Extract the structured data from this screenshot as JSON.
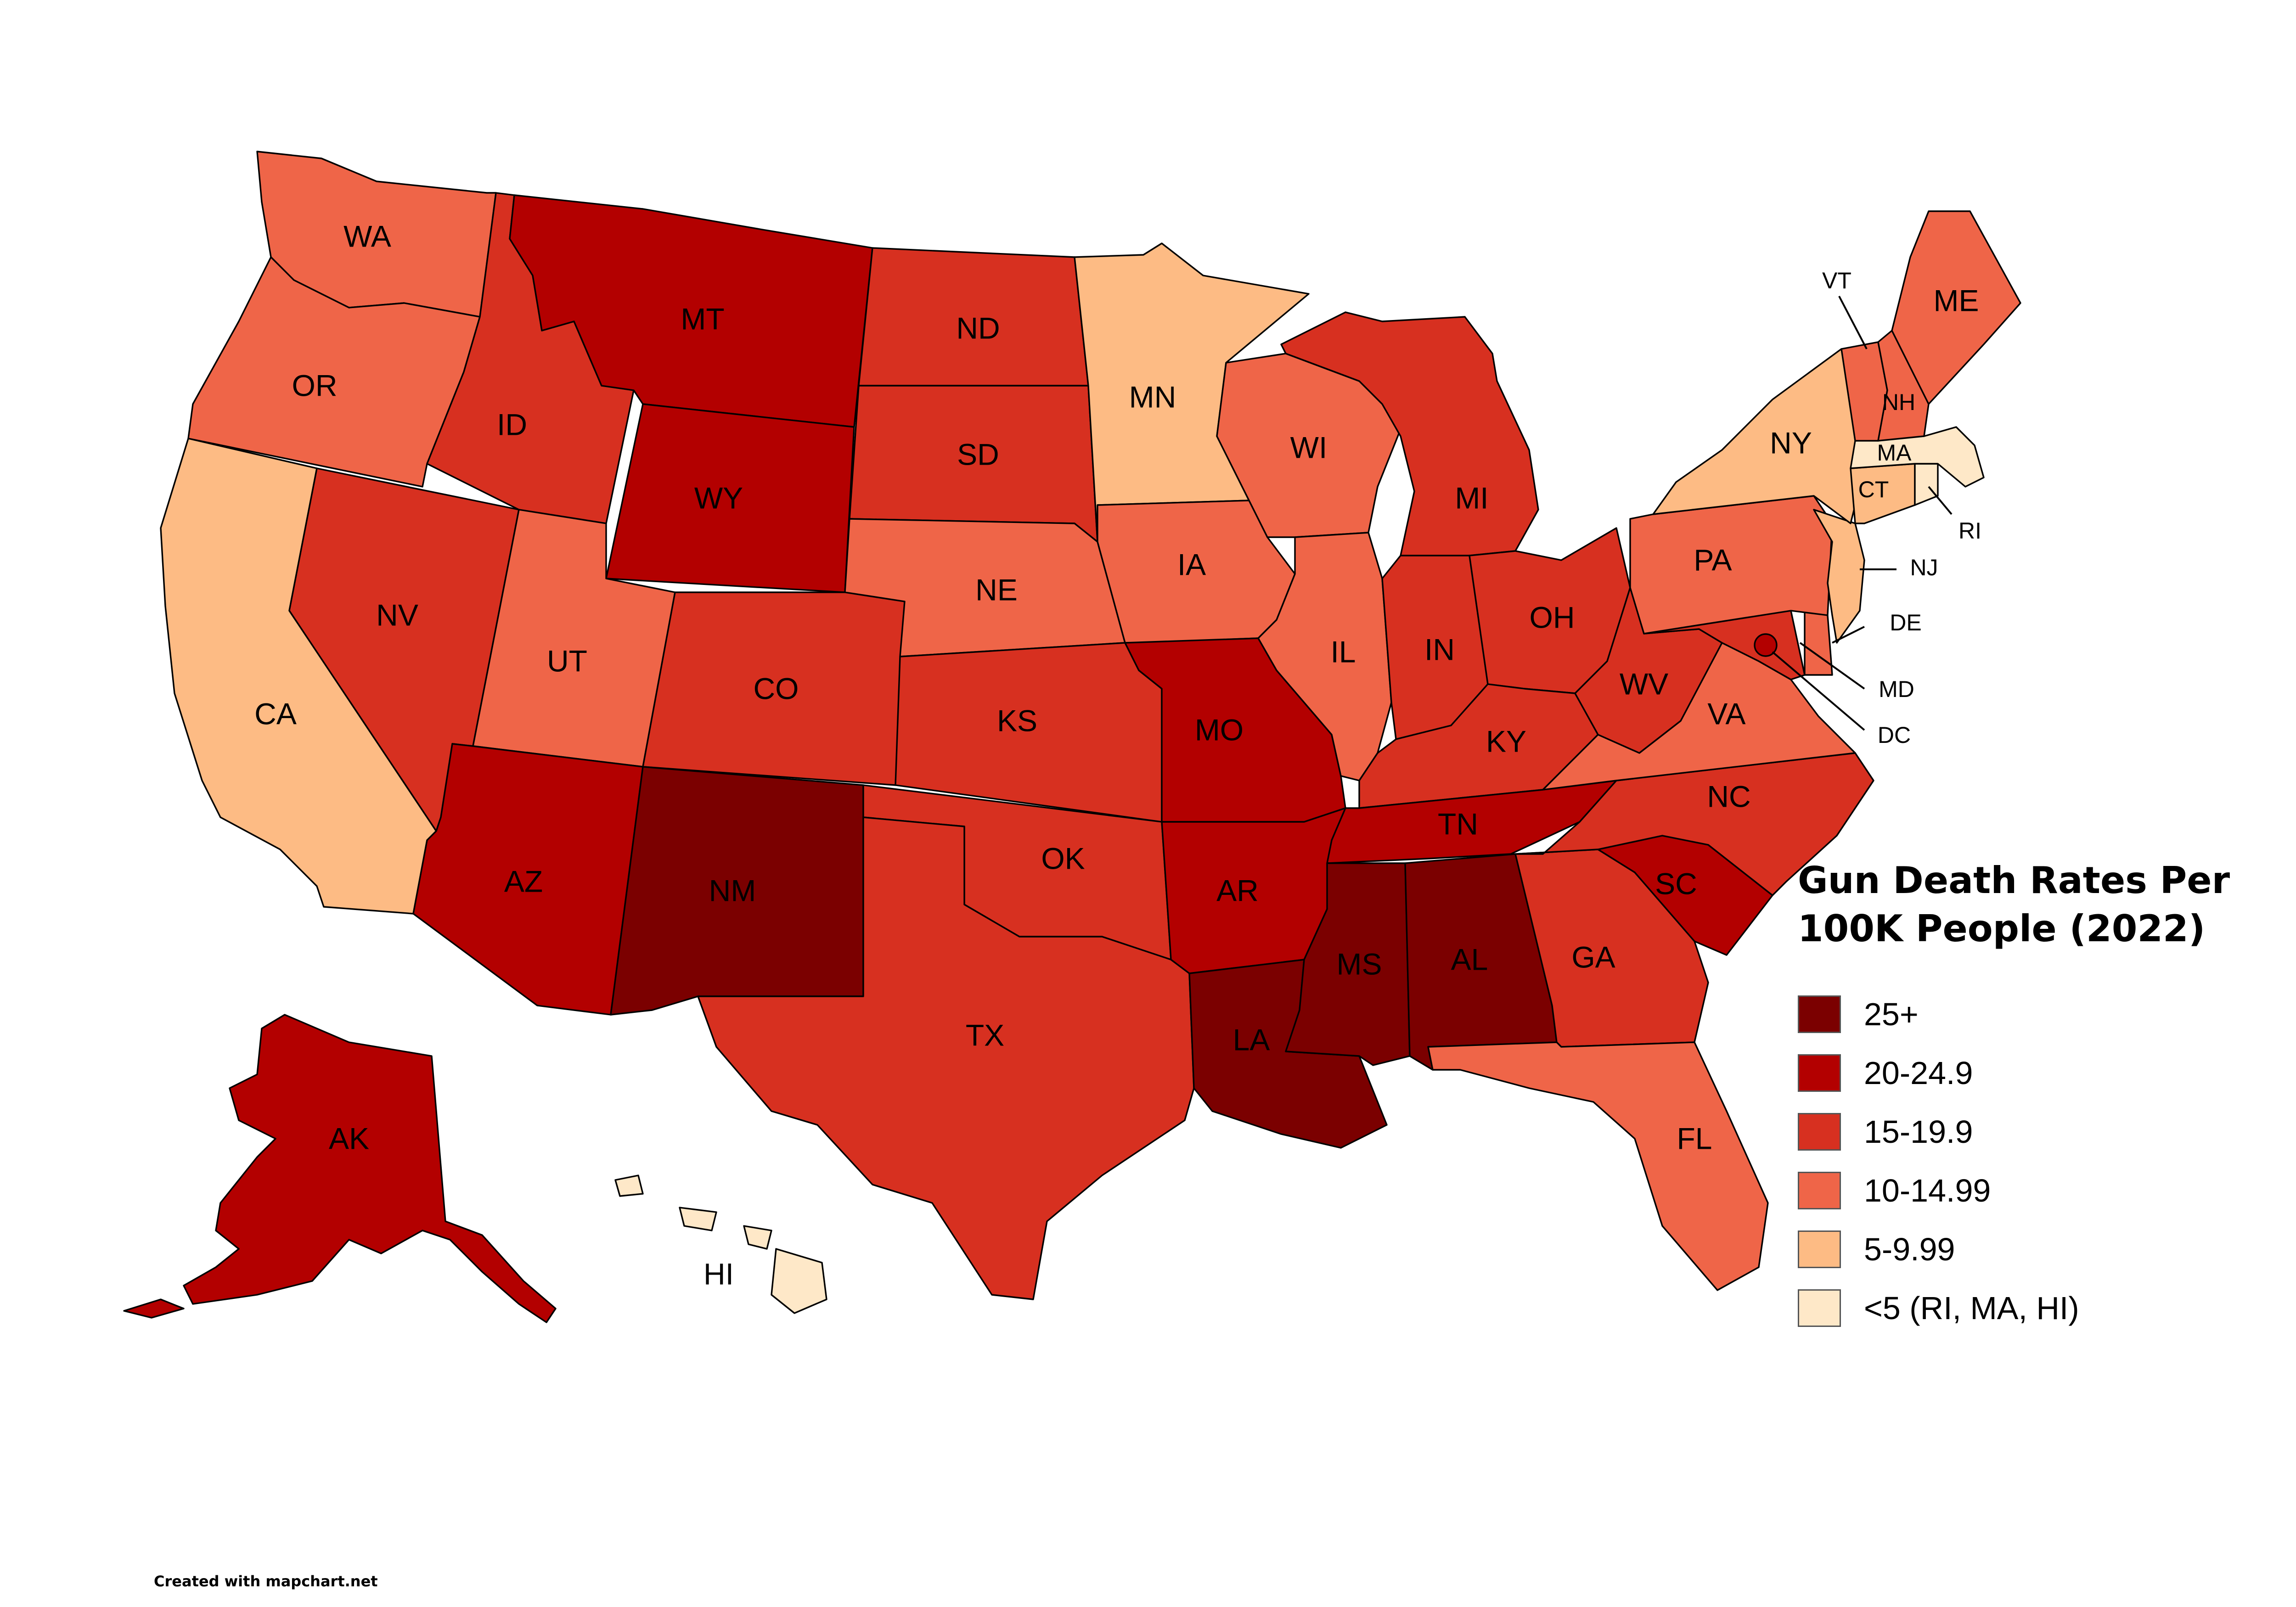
{
  "title": "Gun Death Rates Per 100K People (2022)",
  "credit": "Created with mapchart.net",
  "legend": [
    {
      "label": "25+",
      "color": "#7b0000"
    },
    {
      "label": "20-24.9",
      "color": "#b30000"
    },
    {
      "label": "15-19.9",
      "color": "#d73020"
    },
    {
      "label": "10-14.99",
      "color": "#ef6548"
    },
    {
      "label": "5-9.99",
      "color": "#fdbb84"
    },
    {
      "label": "<5 (RI, MA, HI)",
      "color": "#fee8c8"
    }
  ],
  "states": {
    "WA": {
      "label": "WA",
      "bin": 3
    },
    "OR": {
      "label": "OR",
      "bin": 3
    },
    "CA": {
      "label": "CA",
      "bin": 4
    },
    "NV": {
      "label": "NV",
      "bin": 2
    },
    "ID": {
      "label": "ID",
      "bin": 2
    },
    "MT": {
      "label": "MT",
      "bin": 1
    },
    "WY": {
      "label": "WY",
      "bin": 1
    },
    "UT": {
      "label": "UT",
      "bin": 3
    },
    "AZ": {
      "label": "AZ",
      "bin": 1
    },
    "NM": {
      "label": "NM",
      "bin": 0
    },
    "CO": {
      "label": "CO",
      "bin": 2
    },
    "ND": {
      "label": "ND",
      "bin": 2
    },
    "SD": {
      "label": "SD",
      "bin": 2
    },
    "NE": {
      "label": "NE",
      "bin": 3
    },
    "KS": {
      "label": "KS",
      "bin": 2
    },
    "OK": {
      "label": "OK",
      "bin": 2
    },
    "TX": {
      "label": "TX",
      "bin": 2
    },
    "MN": {
      "label": "MN",
      "bin": 4
    },
    "IA": {
      "label": "IA",
      "bin": 3
    },
    "MO": {
      "label": "MO",
      "bin": 1
    },
    "AR": {
      "label": "AR",
      "bin": 1
    },
    "LA": {
      "label": "LA",
      "bin": 0
    },
    "WI": {
      "label": "WI",
      "bin": 3
    },
    "IL": {
      "label": "IL",
      "bin": 3
    },
    "MI": {
      "label": "MI",
      "bin": 2
    },
    "IN": {
      "label": "IN",
      "bin": 2
    },
    "OH": {
      "label": "OH",
      "bin": 2
    },
    "KY": {
      "label": "KY",
      "bin": 2
    },
    "TN": {
      "label": "TN",
      "bin": 1
    },
    "MS": {
      "label": "MS",
      "bin": 0
    },
    "AL": {
      "label": "AL",
      "bin": 0
    },
    "GA": {
      "label": "GA",
      "bin": 2
    },
    "FL": {
      "label": "FL",
      "bin": 3
    },
    "SC": {
      "label": "SC",
      "bin": 1
    },
    "NC": {
      "label": "NC",
      "bin": 2
    },
    "VA": {
      "label": "VA",
      "bin": 3
    },
    "WV": {
      "label": "WV",
      "bin": 2
    },
    "PA": {
      "label": "PA",
      "bin": 3
    },
    "NY": {
      "label": "NY",
      "bin": 4
    },
    "VT": {
      "label": "VT",
      "bin": 3
    },
    "NH": {
      "label": "NH",
      "bin": 3
    },
    "ME": {
      "label": "ME",
      "bin": 3
    },
    "MA": {
      "label": "MA",
      "bin": 5
    },
    "RI": {
      "label": "RI",
      "bin": 5
    },
    "CT": {
      "label": "CT",
      "bin": 4
    },
    "NJ": {
      "label": "NJ",
      "bin": 4
    },
    "DE": {
      "label": "DE",
      "bin": 3
    },
    "MD": {
      "label": "MD",
      "bin": 2
    },
    "DC": {
      "label": "DC",
      "bin": 1
    },
    "AK": {
      "label": "AK",
      "bin": 1
    },
    "HI": {
      "label": "HI",
      "bin": 5
    }
  }
}
